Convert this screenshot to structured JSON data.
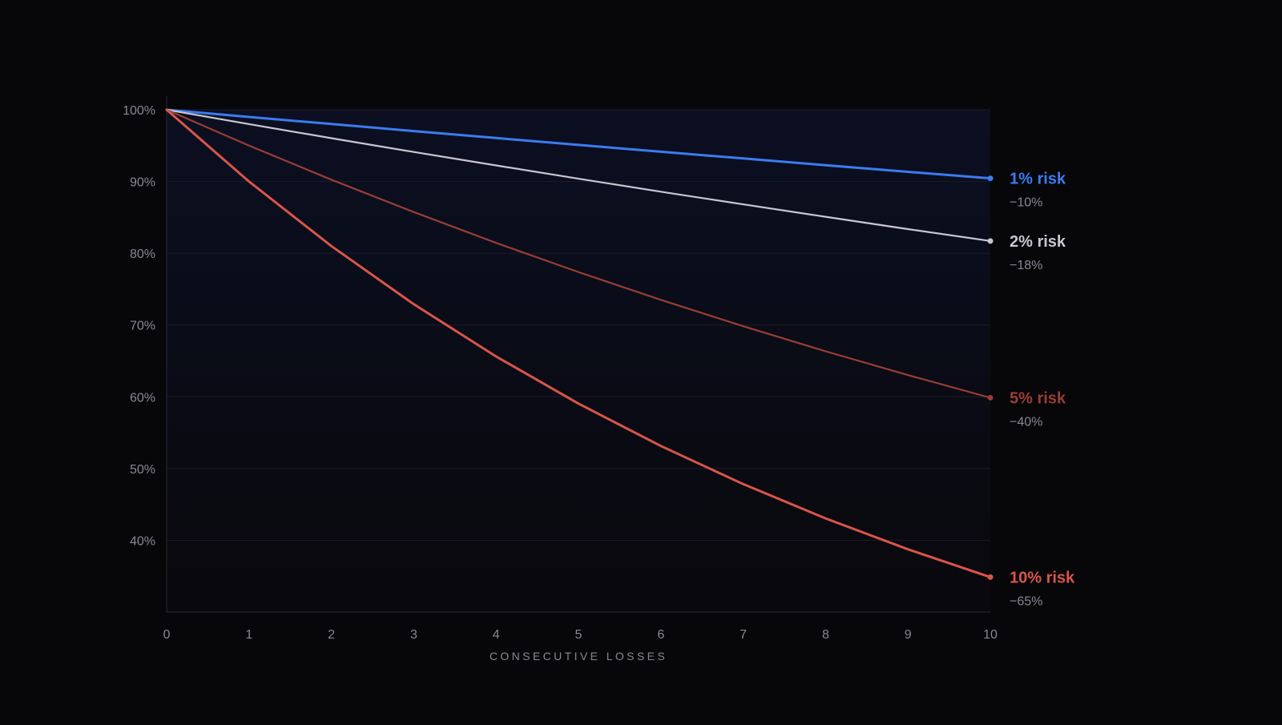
{
  "chart_data": {
    "type": "line",
    "title": "",
    "xlabel": "CONSECUTIVE LOSSES",
    "ylabel": "",
    "x": [
      0,
      1,
      2,
      3,
      4,
      5,
      6,
      7,
      8,
      9,
      10
    ],
    "xlim": [
      0,
      10
    ],
    "ylim": [
      30,
      100
    ],
    "x_ticks": [
      "0",
      "1",
      "2",
      "3",
      "4",
      "5",
      "6",
      "7",
      "8",
      "9",
      "10"
    ],
    "y_ticks": [
      {
        "value": 100,
        "label": "100%"
      },
      {
        "value": 90,
        "label": "90%"
      },
      {
        "value": 80,
        "label": "80%"
      },
      {
        "value": 70,
        "label": "70%"
      },
      {
        "value": 60,
        "label": "60%"
      },
      {
        "value": 50,
        "label": "50%"
      },
      {
        "value": 40,
        "label": "40%"
      }
    ],
    "grid": true,
    "legend": "end-of-line labels, right",
    "series": [
      {
        "name": "1% risk",
        "change_label": "−10%",
        "color": "#3b7cf0",
        "values": [
          100,
          99,
          98.01,
          97.03,
          96.06,
          95.1,
          94.15,
          93.21,
          92.27,
          91.35,
          90.44
        ]
      },
      {
        "name": "2% risk",
        "change_label": "−18%",
        "color": "#c9c6d3",
        "values": [
          100,
          98,
          96.04,
          94.12,
          92.24,
          90.39,
          88.58,
          86.81,
          85.08,
          83.37,
          81.71
        ]
      },
      {
        "name": "5% risk",
        "change_label": "−40%",
        "color": "#9a3e35",
        "values": [
          100,
          95,
          90.25,
          85.74,
          81.45,
          77.38,
          73.51,
          69.83,
          66.34,
          63.02,
          59.87
        ]
      },
      {
        "name": "10% risk",
        "change_label": "−65%",
        "color": "#d9554a",
        "values": [
          100,
          90,
          81,
          72.9,
          65.61,
          59.05,
          53.14,
          47.83,
          43.05,
          38.74,
          34.87
        ]
      }
    ]
  }
}
